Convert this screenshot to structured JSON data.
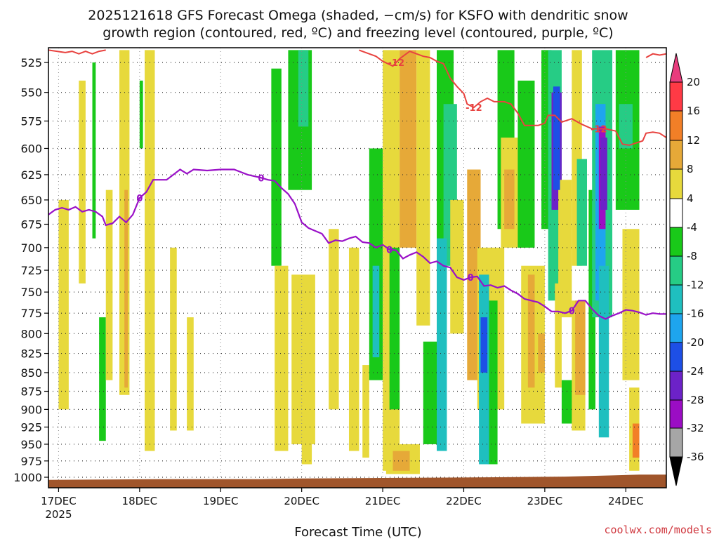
{
  "chart_data": {
    "type": "heatmap",
    "title_line1": "2025121618 GFS Forecast Omega (shaded, −cm/s) for KSFO with dendritic snow",
    "title_line2": "growth region (contoured, red, ºC) and freezing level (contoured, purple, ºC)",
    "xlabel": "Forecast Time (UTC)",
    "x_unit": "hours since 2025-12-17 00Z",
    "xlim": [
      -3,
      180
    ],
    "x_ticks": [
      {
        "hour": 0,
        "label": "17DEC",
        "sub": "2025"
      },
      {
        "hour": 24,
        "label": "18DEC"
      },
      {
        "hour": 48,
        "label": "19DEC"
      },
      {
        "hour": 72,
        "label": "20DEC"
      },
      {
        "hour": 96,
        "label": "21DEC"
      },
      {
        "hour": 120,
        "label": "22DEC"
      },
      {
        "hour": 144,
        "label": "23DEC"
      },
      {
        "hour": 168,
        "label": "24DEC"
      }
    ],
    "y_unit": "hPa",
    "ylim": [
      1010,
      515
    ],
    "y_ticks": [
      525,
      550,
      575,
      600,
      625,
      650,
      675,
      700,
      725,
      750,
      775,
      800,
      825,
      850,
      875,
      900,
      925,
      950,
      975,
      1000
    ],
    "colorbar": {
      "labels": [
        "20",
        "16",
        "12",
        "8",
        "4",
        "-4",
        "-8",
        "-12",
        "-16",
        "-20",
        "-24",
        "-28",
        "-32",
        "-36"
      ],
      "bins": [
        {
          "from": 16,
          "to": 20,
          "color": "#ff3a45"
        },
        {
          "from": 12,
          "to": 16,
          "color": "#f27f27"
        },
        {
          "from": 8,
          "to": 12,
          "color": "#e6a938"
        },
        {
          "from": 4,
          "to": 8,
          "color": "#e7d93c"
        },
        {
          "from": -4,
          "to": 4,
          "color": "#ffffff"
        },
        {
          "from": -8,
          "to": -4,
          "color": "#19c919"
        },
        {
          "from": -12,
          "to": -8,
          "color": "#26cc85"
        },
        {
          "from": -16,
          "to": -12,
          "color": "#1fbfbf"
        },
        {
          "from": -20,
          "to": -16,
          "color": "#1ea5ee"
        },
        {
          "from": -24,
          "to": -20,
          "color": "#1d4fe6"
        },
        {
          "from": -28,
          "to": -24,
          "color": "#6c22c8"
        },
        {
          "from": -32,
          "to": -28,
          "color": "#9b0dc4"
        },
        {
          "from": -36,
          "to": -32,
          "color": "#a6a6a6"
        }
      ],
      "extend_high_color": "#e83c7d",
      "extend_low_color": "#000000"
    },
    "omega_regions": [
      {
        "t0": 0,
        "t1": 3,
        "p0": 650,
        "p1": 900,
        "value": 6
      },
      {
        "t0": 6,
        "t1": 8,
        "p0": 540,
        "p1": 740,
        "value": 6
      },
      {
        "t0": 10,
        "t1": 11,
        "p0": 525,
        "p1": 690,
        "value": -6
      },
      {
        "t0": 12,
        "t1": 14,
        "p0": 780,
        "p1": 945,
        "value": -6
      },
      {
        "t0": 14,
        "t1": 16,
        "p0": 640,
        "p1": 860,
        "value": 6
      },
      {
        "t0": 18,
        "t1": 21,
        "p0": 515,
        "p1": 880,
        "value": 6
      },
      {
        "t0": 19.5,
        "t1": 20.5,
        "p0": 640,
        "p1": 870,
        "value": 10
      },
      {
        "t0": 24,
        "t1": 25,
        "p0": 540,
        "p1": 600,
        "value": -6
      },
      {
        "t0": 25.5,
        "t1": 28.5,
        "p0": 515,
        "p1": 960,
        "value": 6
      },
      {
        "t0": 33,
        "t1": 35,
        "p0": 700,
        "p1": 930,
        "value": 6
      },
      {
        "t0": 38,
        "t1": 40,
        "p0": 780,
        "p1": 930,
        "value": 6
      },
      {
        "t0": 63,
        "t1": 66,
        "p0": 530,
        "p1": 720,
        "value": -6
      },
      {
        "t0": 64,
        "t1": 68,
        "p0": 720,
        "p1": 960,
        "value": 6
      },
      {
        "t0": 68,
        "t1": 75,
        "p0": 515,
        "p1": 640,
        "value": -6
      },
      {
        "t0": 71,
        "t1": 74,
        "p0": 515,
        "p1": 580,
        "value": -12
      },
      {
        "t0": 69,
        "t1": 76,
        "p0": 730,
        "p1": 950,
        "value": 6
      },
      {
        "t0": 72,
        "t1": 75,
        "p0": 820,
        "p1": 980,
        "value": 6
      },
      {
        "t0": 80,
        "t1": 83,
        "p0": 680,
        "p1": 900,
        "value": 6
      },
      {
        "t0": 86,
        "t1": 89,
        "p0": 700,
        "p1": 960,
        "value": 6
      },
      {
        "t0": 90,
        "t1": 92,
        "p0": 840,
        "p1": 970,
        "value": 6
      },
      {
        "t0": 92,
        "t1": 96,
        "p0": 600,
        "p1": 860,
        "value": -6
      },
      {
        "t0": 96,
        "t1": 101,
        "p0": 515,
        "p1": 990,
        "value": 6
      },
      {
        "t0": 98,
        "t1": 101,
        "p0": 700,
        "p1": 900,
        "value": -6
      },
      {
        "t0": 101,
        "t1": 106,
        "p0": 515,
        "p1": 700,
        "value": 10
      },
      {
        "t0": 106,
        "t1": 110,
        "p0": 515,
        "p1": 790,
        "value": 6
      },
      {
        "t0": 108,
        "t1": 112,
        "p0": 810,
        "p1": 950,
        "value": -8
      },
      {
        "t0": 97,
        "t1": 107,
        "p0": 950,
        "p1": 995,
        "value": 6
      },
      {
        "t0": 99,
        "t1": 104,
        "p0": 960,
        "p1": 990,
        "value": 10
      },
      {
        "t0": 112,
        "t1": 117,
        "p0": 515,
        "p1": 720,
        "value": -6
      },
      {
        "t0": 114,
        "t1": 118,
        "p0": 560,
        "p1": 720,
        "value": -10
      },
      {
        "t0": 116,
        "t1": 120,
        "p0": 650,
        "p1": 800,
        "value": 6
      },
      {
        "t0": 121,
        "t1": 125,
        "p0": 620,
        "p1": 860,
        "value": 10
      },
      {
        "t0": 124,
        "t1": 132,
        "p0": 700,
        "p1": 900,
        "value": 6
      },
      {
        "t0": 127,
        "t1": 130,
        "p0": 760,
        "p1": 980,
        "value": -6
      },
      {
        "t0": 130,
        "t1": 135,
        "p0": 515,
        "p1": 680,
        "value": -6
      },
      {
        "t0": 131,
        "t1": 138,
        "p0": 590,
        "p1": 700,
        "value": 6
      },
      {
        "t0": 132,
        "t1": 135,
        "p0": 620,
        "p1": 680,
        "value": 10
      },
      {
        "t0": 136,
        "t1": 141,
        "p0": 540,
        "p1": 700,
        "value": -6
      },
      {
        "t0": 137,
        "t1": 144,
        "p0": 720,
        "p1": 920,
        "value": 6
      },
      {
        "t0": 139,
        "t1": 141,
        "p0": 730,
        "p1": 870,
        "value": 10
      },
      {
        "t0": 142,
        "t1": 144,
        "p0": 800,
        "p1": 850,
        "value": 10
      },
      {
        "t0": 143,
        "t1": 146,
        "p0": 515,
        "p1": 680,
        "value": -6
      },
      {
        "t0": 145,
        "t1": 149,
        "p0": 515,
        "p1": 760,
        "value": -10
      },
      {
        "t0": 146,
        "t1": 149,
        "p0": 550,
        "p1": 660,
        "value": -28
      },
      {
        "t0": 147,
        "t1": 149,
        "p0": 740,
        "p1": 870,
        "value": 6
      },
      {
        "t0": 148,
        "t1": 152,
        "p0": 630,
        "p1": 780,
        "value": 6
      },
      {
        "t0": 149,
        "t1": 154,
        "p0": 860,
        "p1": 920,
        "value": -6
      },
      {
        "t0": 152,
        "t1": 155,
        "p0": 515,
        "p1": 720,
        "value": 6
      },
      {
        "t0": 152,
        "t1": 156,
        "p0": 760,
        "p1": 930,
        "value": 6
      },
      {
        "t0": 153,
        "t1": 156,
        "p0": 760,
        "p1": 880,
        "value": 10
      },
      {
        "t0": 157,
        "t1": 159,
        "p0": 640,
        "p1": 900,
        "value": -6
      },
      {
        "t0": 158,
        "t1": 164,
        "p0": 515,
        "p1": 780,
        "value": -10
      },
      {
        "t0": 159,
        "t1": 162,
        "p0": 560,
        "p1": 760,
        "value": -18
      },
      {
        "t0": 160,
        "t1": 162,
        "p0": 580,
        "p1": 680,
        "value": -30
      },
      {
        "t0": 165,
        "t1": 172,
        "p0": 515,
        "p1": 660,
        "value": -6
      },
      {
        "t0": 166,
        "t1": 170,
        "p0": 560,
        "p1": 600,
        "value": -10
      },
      {
        "t0": 167,
        "t1": 172,
        "p0": 680,
        "p1": 860,
        "value": 6
      },
      {
        "t0": 169,
        "t1": 172,
        "p0": 870,
        "p1": 990,
        "value": 6
      },
      {
        "t0": 170,
        "t1": 172,
        "p0": 920,
        "p1": 970,
        "value": 14
      }
    ],
    "omega_regions_strong": [
      {
        "t0": 93,
        "t1": 95,
        "p0": 720,
        "p1": 830,
        "value": -14
      },
      {
        "t0": 112,
        "t1": 115,
        "p0": 690,
        "p1": 960,
        "value": -14
      },
      {
        "t0": 124.5,
        "t1": 127.5,
        "p0": 730,
        "p1": 980,
        "value": -14
      },
      {
        "t0": 125,
        "t1": 127,
        "p0": 780,
        "p1": 850,
        "value": -22
      },
      {
        "t0": 146.5,
        "t1": 148.5,
        "p0": 545,
        "p1": 640,
        "value": -24
      },
      {
        "t0": 153.5,
        "t1": 156.5,
        "p0": 610,
        "p1": 720,
        "value": -12
      },
      {
        "t0": 160,
        "t1": 163,
        "p0": 720,
        "p1": 940,
        "value": -14
      },
      {
        "t0": 160.5,
        "t1": 162.5,
        "p0": 590,
        "p1": 660,
        "value": -26
      }
    ],
    "dendritic_contour": {
      "label": "-12",
      "color": "#e8423f",
      "segments": [
        [
          [
            -3,
            515
          ],
          [
            2,
            517
          ],
          [
            4,
            516
          ],
          [
            6,
            518
          ],
          [
            8,
            516
          ],
          [
            10,
            518
          ],
          [
            12,
            516
          ],
          [
            14,
            515
          ]
        ],
        [
          [
            89,
            515
          ],
          [
            92,
            518
          ],
          [
            94,
            520
          ],
          [
            96,
            524
          ],
          [
            99,
            528
          ],
          [
            101,
            522
          ],
          [
            104,
            516
          ],
          [
            106,
            518
          ],
          [
            108,
            520
          ],
          [
            110,
            521
          ],
          [
            112,
            524
          ],
          [
            114,
            526
          ],
          [
            116,
            538
          ],
          [
            118,
            545
          ],
          [
            120,
            551
          ],
          [
            121,
            560
          ],
          [
            123,
            563
          ],
          [
            125,
            558
          ],
          [
            127,
            555
          ],
          [
            129,
            558
          ],
          [
            132,
            558
          ],
          [
            134,
            560
          ],
          [
            136,
            568
          ],
          [
            138,
            579
          ],
          [
            142,
            579
          ],
          [
            144,
            577
          ],
          [
            145,
            570
          ],
          [
            147,
            570
          ],
          [
            149,
            576
          ],
          [
            152,
            573
          ],
          [
            155,
            578
          ],
          [
            158,
            582
          ],
          [
            162,
            582
          ],
          [
            165,
            584
          ],
          [
            167,
            596
          ],
          [
            169,
            597
          ],
          [
            171,
            595
          ],
          [
            173,
            593
          ],
          [
            174,
            586
          ],
          [
            176,
            585
          ],
          [
            178,
            586
          ],
          [
            180,
            590
          ]
        ],
        [
          [
            174,
            521
          ],
          [
            176,
            518
          ],
          [
            178,
            519
          ],
          [
            180,
            518
          ]
        ]
      ],
      "labels_at_hours": [
        100,
        123,
        160
      ]
    },
    "freezing_contour": {
      "label": "0",
      "color": "#9a11c8",
      "points": [
        [
          -3,
          665
        ],
        [
          -1,
          660
        ],
        [
          1,
          658
        ],
        [
          3,
          660
        ],
        [
          5,
          657
        ],
        [
          7,
          662
        ],
        [
          9,
          660
        ],
        [
          11,
          662
        ],
        [
          13,
          667
        ],
        [
          14,
          676
        ],
        [
          16,
          674
        ],
        [
          18,
          667
        ],
        [
          20,
          673
        ],
        [
          22,
          665
        ],
        [
          24,
          648
        ],
        [
          26,
          642
        ],
        [
          28,
          630
        ],
        [
          32,
          630
        ],
        [
          34,
          625
        ],
        [
          36,
          620
        ],
        [
          38,
          624
        ],
        [
          40,
          620
        ],
        [
          44,
          621
        ],
        [
          48,
          620
        ],
        [
          52,
          620
        ],
        [
          56,
          625
        ],
        [
          60,
          628
        ],
        [
          62,
          630
        ],
        [
          64,
          631
        ],
        [
          66,
          638
        ],
        [
          68,
          644
        ],
        [
          70,
          654
        ],
        [
          72,
          673
        ],
        [
          74,
          679
        ],
        [
          76,
          682
        ],
        [
          78,
          685
        ],
        [
          80,
          695
        ],
        [
          82,
          692
        ],
        [
          84,
          693
        ],
        [
          86,
          690
        ],
        [
          88,
          688
        ],
        [
          90,
          694
        ],
        [
          92,
          695
        ],
        [
          94,
          700
        ],
        [
          96,
          697
        ],
        [
          98,
          702
        ],
        [
          100,
          703
        ],
        [
          102,
          712
        ],
        [
          104,
          708
        ],
        [
          106,
          705
        ],
        [
          108,
          710
        ],
        [
          110,
          717
        ],
        [
          112,
          715
        ],
        [
          114,
          720
        ],
        [
          116,
          722
        ],
        [
          118,
          733
        ],
        [
          120,
          736
        ],
        [
          122,
          733
        ],
        [
          124,
          732
        ],
        [
          126,
          743
        ],
        [
          128,
          742
        ],
        [
          130,
          745
        ],
        [
          132,
          743
        ],
        [
          134,
          748
        ],
        [
          136,
          752
        ],
        [
          138,
          758
        ],
        [
          140,
          760
        ],
        [
          142,
          762
        ],
        [
          144,
          767
        ],
        [
          146,
          773
        ],
        [
          148,
          773
        ],
        [
          150,
          775
        ],
        [
          152,
          772
        ],
        [
          154,
          760
        ],
        [
          156,
          760
        ],
        [
          158,
          770
        ],
        [
          160,
          778
        ],
        [
          162,
          782
        ],
        [
          164,
          778
        ],
        [
          166,
          775
        ],
        [
          168,
          771
        ],
        [
          170,
          772
        ],
        [
          172,
          774
        ],
        [
          174,
          777
        ],
        [
          176,
          775
        ],
        [
          178,
          776
        ],
        [
          180,
          776
        ]
      ],
      "labels_at_hours": [
        24,
        60,
        98,
        122,
        152
      ]
    },
    "ground": {
      "color": "#a0552b",
      "top_pressure": [
        [
          -3,
          1004
        ],
        [
          30,
          1003
        ],
        [
          60,
          1003
        ],
        [
          72,
          1002
        ],
        [
          100,
          1001
        ],
        [
          130,
          1000
        ],
        [
          150,
          999
        ],
        [
          165,
          997
        ],
        [
          172,
          996
        ],
        [
          180,
          996
        ]
      ]
    }
  },
  "credit": "coolwx.com/models"
}
